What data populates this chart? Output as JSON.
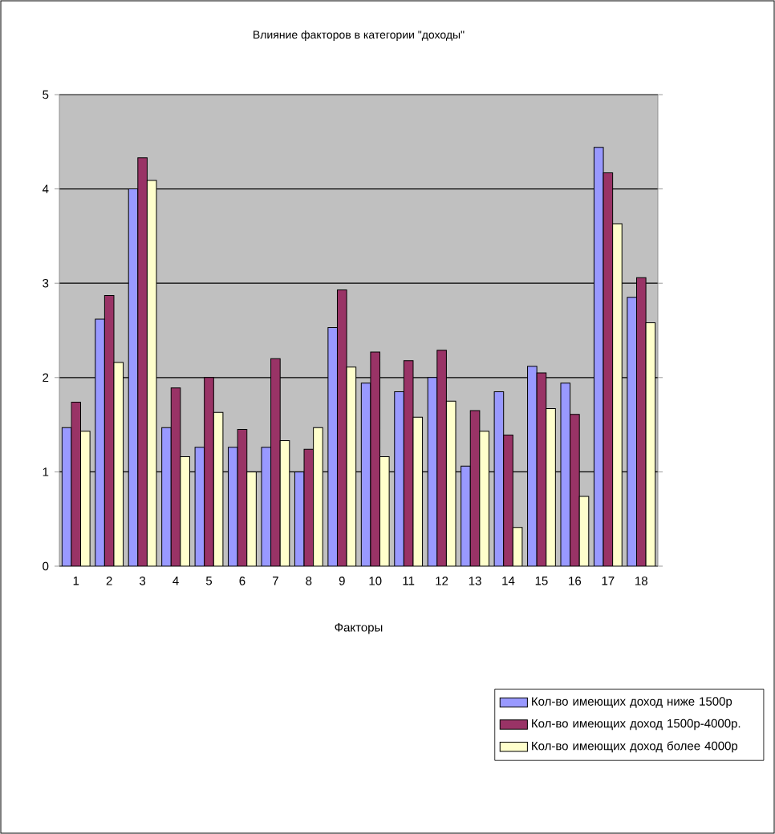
{
  "chart_data": {
    "type": "bar",
    "title": "Влияние факторов в категории \"доходы\"",
    "xlabel": "Факторы",
    "categories": [
      "1",
      "2",
      "3",
      "4",
      "5",
      "6",
      "7",
      "8",
      "9",
      "10",
      "11",
      "12",
      "13",
      "14",
      "15",
      "16",
      "17",
      "18"
    ],
    "series": [
      {
        "name": "Кол-во имеющих доход ниже 1500р",
        "color": "#9999ff",
        "values": [
          1.47,
          2.62,
          4.0,
          1.47,
          1.26,
          1.26,
          1.26,
          1.0,
          2.53,
          1.94,
          1.85,
          2.0,
          1.06,
          1.85,
          2.12,
          1.94,
          4.44,
          2.85
        ]
      },
      {
        "name": "Кол-во имеющих доход 1500р-4000р.",
        "color": "#993366",
        "values": [
          1.74,
          2.87,
          4.33,
          1.89,
          2.0,
          1.45,
          2.2,
          1.24,
          2.93,
          2.27,
          2.18,
          2.29,
          1.65,
          1.39,
          2.05,
          1.61,
          4.17,
          3.06
        ]
      },
      {
        "name": "Кол-во имеющих доход более 4000р",
        "color": "#ffffcc",
        "values": [
          1.43,
          2.16,
          4.09,
          1.16,
          1.63,
          1.0,
          1.33,
          1.47,
          2.11,
          1.16,
          1.58,
          1.75,
          1.43,
          0.41,
          1.67,
          0.74,
          3.63,
          2.58
        ]
      }
    ],
    "ylim": [
      0,
      5
    ],
    "yticks": [
      0,
      1,
      2,
      3,
      4,
      5
    ],
    "grid": "y",
    "legend": "bottom right"
  }
}
